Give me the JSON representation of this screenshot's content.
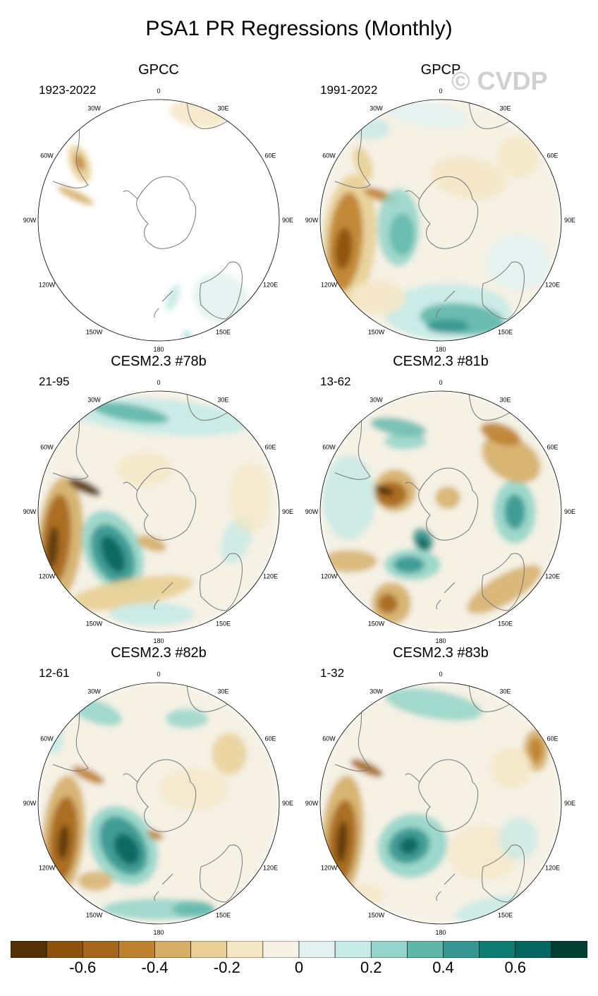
{
  "title": "PSA1 PR Regressions (Monthly)",
  "watermark": "© CVDP",
  "panels": [
    {
      "name": "GPCC",
      "period": "1923-2022"
    },
    {
      "name": "GPCP",
      "period": "1991-2022"
    },
    {
      "name": "CESM2.3 #78b",
      "period": "21-95"
    },
    {
      "name": "CESM2.3 #81b",
      "period": "13-62"
    },
    {
      "name": "CESM2.3 #82b",
      "period": "12-61"
    },
    {
      "name": "CESM2.3 #83b",
      "period": "1-32"
    }
  ],
  "longitude_labels": [
    "0",
    "30E",
    "60E",
    "90E",
    "120E",
    "150E",
    "180",
    "150W",
    "120W",
    "90W",
    "60W",
    "30W"
  ],
  "colorbar": {
    "colors": [
      "#543005",
      "#8c510a",
      "#a6661b",
      "#bf812d",
      "#d5ae66",
      "#e8cf94",
      "#f5e7c6",
      "#f5f1e4",
      "#e4f2ef",
      "#c7eae5",
      "#93d5c9",
      "#5fb7aa",
      "#35978f",
      "#0f7a6f",
      "#01665e",
      "#003c30"
    ],
    "tick_labels": [
      "-0.6",
      "-0.4",
      "-0.2",
      "0",
      "0.2",
      "0.4",
      "0.6"
    ]
  }
}
